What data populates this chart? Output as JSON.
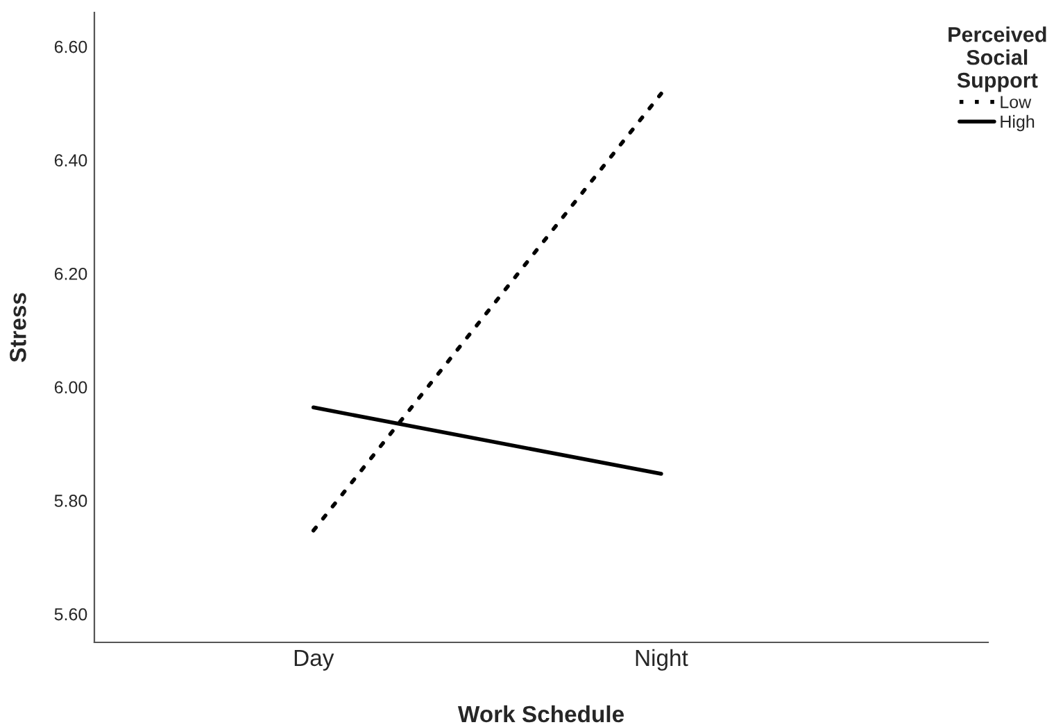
{
  "chart_data": {
    "type": "line",
    "xlabel": "Work Schedule",
    "ylabel": "Stress",
    "legend_title": "Perceived\nSocial\nSupport",
    "categories": [
      "Day",
      "Night"
    ],
    "series": [
      {
        "name": "Low",
        "color": "#000000",
        "line_style": "dotted",
        "values": [
          5.747,
          6.517
        ]
      },
      {
        "name": "High",
        "color": "#000000",
        "line_style": "solid",
        "values": [
          5.964,
          5.847
        ]
      }
    ],
    "ylim": [
      5.55,
      6.66
    ],
    "yticks": [
      {
        "value": 5.6,
        "label": "5.60"
      },
      {
        "value": 5.8,
        "label": "5.80"
      },
      {
        "value": 6.0,
        "label": "6.00"
      },
      {
        "value": 6.2,
        "label": "6.20"
      },
      {
        "value": 6.4,
        "label": "6.40"
      },
      {
        "value": 6.6,
        "label": "6.60"
      }
    ],
    "grid": false,
    "legend": "top right",
    "marker": "none"
  }
}
